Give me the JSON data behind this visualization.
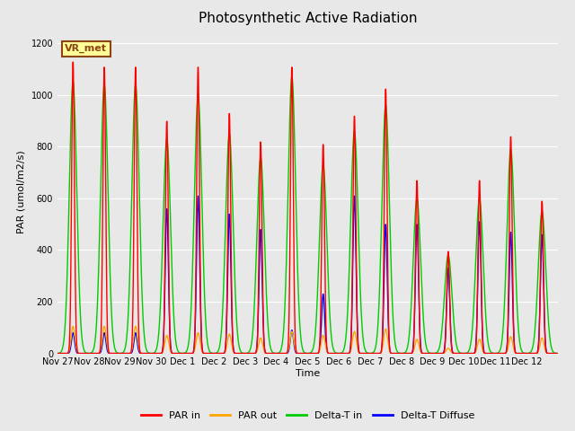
{
  "title": "Photosynthetic Active Radiation",
  "xlabel": "Time",
  "ylabel": "PAR (umol/m2/s)",
  "ylim": [
    0,
    1250
  ],
  "yticks": [
    0,
    200,
    400,
    600,
    800,
    1000,
    1200
  ],
  "bg_color": "#e8e8e8",
  "annotation_text": "VR_met",
  "annotation_bg": "#ffff99",
  "annotation_border": "#8B4513",
  "legend_labels": [
    "PAR in",
    "PAR out",
    "Delta-T in",
    "Delta-T Diffuse"
  ],
  "legend_colors": [
    "#ff0000",
    "#ffa500",
    "#00cc00",
    "#0000ff"
  ],
  "xtick_labels": [
    "Nov 27",
    "Nov 28",
    "Nov 29",
    "Nov 30",
    "Dec 1",
    "Dec 2",
    "Dec 3",
    "Dec 4",
    "Dec 5",
    "Dec 6",
    "Dec 7",
    "Dec 8",
    "Dec 9",
    "Dec 10",
    "Dec 11",
    "Dec 12"
  ],
  "samples_per_day": 144,
  "num_days": 16,
  "day_peaks_par_in": [
    1130,
    1110,
    1110,
    900,
    1110,
    930,
    820,
    1110,
    810,
    920,
    1025,
    670,
    395,
    670,
    840,
    590
  ],
  "day_peaks_par_out": [
    105,
    105,
    105,
    70,
    80,
    75,
    60,
    85,
    70,
    85,
    95,
    55,
    20,
    55,
    65,
    60
  ],
  "day_peaks_delta_in_wide": [
    1050,
    1040,
    1040,
    830,
    1000,
    850,
    760,
    1070,
    730,
    860,
    960,
    600,
    380,
    600,
    790,
    550
  ],
  "day_peaks_delta_dif": [
    80,
    80,
    80,
    560,
    610,
    540,
    480,
    90,
    230,
    610,
    500,
    500,
    330,
    510,
    470,
    460
  ],
  "par_in_sigma": 0.045,
  "par_out_sigma": 0.06,
  "delta_in_sigma": 0.12,
  "delta_dif_sigma": 0.05
}
